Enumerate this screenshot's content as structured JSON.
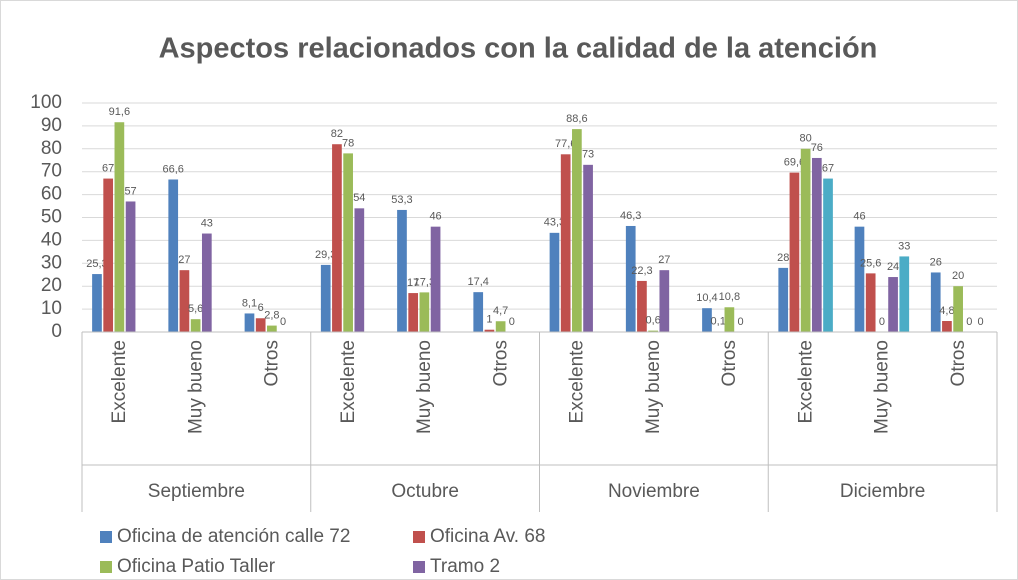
{
  "chart_data": {
    "type": "bar",
    "title": "Aspectos relacionados con la calidad de la atención",
    "groups": [
      "Septiembre",
      "Octubre",
      "Noviembre",
      "Diciembre"
    ],
    "categories": [
      "Excelente",
      "Muy bueno",
      "Otros",
      "Excelente",
      "Muy bueno",
      "Otros",
      "Excelente",
      "Muy bueno",
      "Otros",
      "Excelente",
      "Muy bueno",
      "Otros"
    ],
    "series": [
      {
        "name": "Oficina de atención calle 72",
        "color": "#4f81bd",
        "values": [
          25.3,
          66.6,
          8.1,
          29.3,
          53.3,
          17.4,
          43.3,
          46.3,
          10.4,
          28,
          46,
          26
        ],
        "value_labels": [
          "25,3",
          "66,6",
          "8,1",
          "29,3",
          "53,3",
          "17,4",
          "43,3",
          "46,3",
          "10,4",
          "28",
          "46",
          "26"
        ]
      },
      {
        "name": "Oficina Av. 68",
        "color": "#c0504d",
        "values": [
          67,
          27,
          6,
          82,
          17,
          1,
          77.6,
          22.3,
          0.1,
          69.6,
          25.6,
          4.8
        ],
        "value_labels": [
          "67",
          "27",
          "6",
          "82",
          "17",
          "1",
          "77,6",
          "22,3",
          "0,1",
          "69,6",
          "25,6",
          "4,8"
        ]
      },
      {
        "name": "Oficina Patio Taller",
        "color": "#9bbb59",
        "values": [
          91.6,
          5.6,
          2.8,
          78,
          17.3,
          4.7,
          88.6,
          0.6,
          10.8,
          80,
          0,
          20
        ],
        "value_labels": [
          "91,6",
          "5,6",
          "2,8",
          "78",
          "17,3",
          "4,7",
          "88,6",
          "0,6",
          "10,8",
          "80",
          "0",
          "20"
        ]
      },
      {
        "name": "Tramo 2",
        "color": "#8064a2",
        "values": [
          57,
          43,
          0,
          54,
          46,
          0,
          73,
          27,
          0,
          76,
          24,
          0
        ],
        "value_labels": [
          "57",
          "43",
          "0",
          "54",
          "46",
          "0",
          "73",
          "27",
          "0",
          "76",
          "24",
          "0"
        ]
      },
      {
        "color": "#4bacc6",
        "values": [
          null,
          null,
          null,
          null,
          null,
          null,
          null,
          null,
          null,
          67,
          33,
          0
        ],
        "value_labels": [
          null,
          null,
          null,
          null,
          null,
          null,
          null,
          null,
          null,
          "67",
          "33",
          "0"
        ]
      }
    ],
    "ylim": [
      0,
      100
    ],
    "yticks": [
      0,
      10,
      20,
      30,
      40,
      50,
      60,
      70,
      80,
      90,
      100
    ],
    "grid": true,
    "legend": "bottom"
  }
}
